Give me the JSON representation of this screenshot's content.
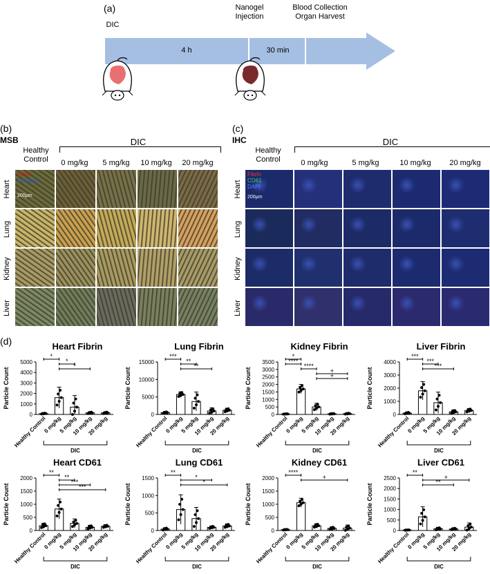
{
  "panel_a": {
    "label": "(a)",
    "events": [
      "DIC",
      "Nanogel\nInjection",
      "Blood Collection\nOrgan Harvest"
    ],
    "durations": [
      "4 h",
      "30 min"
    ]
  },
  "panel_b": {
    "label": "(b)",
    "method": "MSB",
    "group_label": "DIC",
    "control_label": "Healthy Control",
    "columns": [
      "0 mg/kg",
      "5 mg/kg",
      "10 mg/kg",
      "20 mg/kg"
    ],
    "rows": [
      "Heart",
      "Lung",
      "Kidney",
      "Liver"
    ],
    "legend": [
      "Fibrin",
      "Collagen"
    ],
    "scale_bar": "200μm"
  },
  "panel_c": {
    "label": "(c)",
    "method": "IHC",
    "group_label": "DIC",
    "control_label": "Healthy Control",
    "columns": [
      "0 mg/kg",
      "5 mg/kg",
      "10 mg/kg",
      "20 mg/kg"
    ],
    "rows": [
      "Heart",
      "Lung",
      "Kidney",
      "Liver"
    ],
    "legend": [
      "Fibrin",
      "CD61",
      "DAPI"
    ],
    "scale_bar": "200μm"
  },
  "panel_d": {
    "label": "(d)"
  },
  "colors": {
    "arrow": "#9fb9e0",
    "msb": "#c8b46a",
    "ihc": "#1d2a78",
    "fibrin": "#d01818",
    "collagen": "#2a56c6",
    "cd61": "#20b040"
  },
  "chart_data": [
    {
      "type": "bar",
      "title": "Heart Fibrin",
      "ylabel": "Particle Count",
      "categories": [
        "Healthy Control",
        "0 mg/kg",
        "5 mg/kg",
        "10 mg/kg",
        "20 mg/kg"
      ],
      "values": [
        80,
        1600,
        700,
        150,
        150
      ],
      "errors": [
        60,
        1000,
        1100,
        100,
        100
      ],
      "ylim": [
        0,
        5000
      ],
      "yticks": [
        0,
        1000,
        2000,
        3000,
        4000,
        5000
      ],
      "group_label": "DIC",
      "sig": [
        {
          "from": 0,
          "to": 1,
          "label": "*"
        },
        {
          "from": 1,
          "to": 2,
          "label": "*"
        },
        {
          "from": 1,
          "to": 3,
          "label": "*"
        }
      ]
    },
    {
      "type": "bar",
      "title": "Lung Fibrin",
      "ylabel": "Particle Count",
      "categories": [
        "Healthy Control",
        "0 mg/kg",
        "5 mg/kg",
        "10 mg/kg",
        "20 mg/kg"
      ],
      "values": [
        500,
        5700,
        3700,
        1000,
        1200
      ],
      "errors": [
        300,
        800,
        2700,
        900,
        600
      ],
      "ylim": [
        0,
        15000
      ],
      "yticks": [
        0,
        5000,
        10000,
        15000
      ],
      "group_label": "DIC",
      "sig": [
        {
          "from": 0,
          "to": 1,
          "label": "***"
        },
        {
          "from": 1,
          "to": 2,
          "label": "**"
        },
        {
          "from": 1,
          "to": 3,
          "label": "**"
        }
      ]
    },
    {
      "type": "bar",
      "title": "Kidney Fibrin",
      "ylabel": "Particle Count",
      "categories": [
        "Healthy Control",
        "0 mg/kg",
        "5 mg/kg",
        "10 mg/kg",
        "20 mg/kg"
      ],
      "values": [
        30,
        1700,
        500,
        40,
        50
      ],
      "errors": [
        20,
        300,
        250,
        30,
        40
      ],
      "ylim": [
        0,
        3500
      ],
      "yticks": [
        0,
        500,
        1000,
        1500,
        2000,
        2500,
        3000,
        3500
      ],
      "group_label": "DIC",
      "sig": [
        {
          "from": 0,
          "to": 1,
          "label": "*"
        },
        {
          "from": 0,
          "to": 1,
          "label": "****"
        },
        {
          "from": 1,
          "to": 2,
          "label": "****"
        },
        {
          "from": 2,
          "to": 4,
          "label": "+"
        },
        {
          "from": 2,
          "to": 4,
          "label": "+"
        }
      ]
    },
    {
      "type": "bar",
      "title": "Liver Fibrin",
      "ylabel": "Particle Count",
      "categories": [
        "Healthy Control",
        "0 mg/kg",
        "5 mg/kg",
        "10 mg/kg",
        "20 mg/kg"
      ],
      "values": [
        100,
        1800,
        900,
        200,
        300
      ],
      "errors": [
        80,
        700,
        800,
        150,
        150
      ],
      "ylim": [
        0,
        4000
      ],
      "yticks": [
        0,
        1000,
        2000,
        3000,
        4000
      ],
      "group_label": "DIC",
      "sig": [
        {
          "from": 0,
          "to": 1,
          "label": "***"
        },
        {
          "from": 1,
          "to": 2,
          "label": "***"
        },
        {
          "from": 1,
          "to": 3,
          "label": "***"
        }
      ]
    },
    {
      "type": "bar",
      "title": "Heart CD61",
      "ylabel": "Particle Count",
      "categories": [
        "Healthy Control",
        "0 mg/kg",
        "5 mg/kg",
        "10 mg/kg",
        "20 mg/kg"
      ],
      "values": [
        180,
        820,
        270,
        120,
        160
      ],
      "errors": [
        100,
        380,
        170,
        80,
        60
      ],
      "ylim": [
        0,
        2000
      ],
      "yticks": [
        0,
        500,
        1000,
        1500,
        2000
      ],
      "group_label": "DIC",
      "sig": [
        {
          "from": 0,
          "to": 1,
          "label": "**"
        },
        {
          "from": 1,
          "to": 2,
          "label": "**"
        },
        {
          "from": 1,
          "to": 3,
          "label": "***"
        },
        {
          "from": 1,
          "to": 4,
          "label": "***"
        }
      ]
    },
    {
      "type": "bar",
      "title": "Lung CD61",
      "ylabel": "Particle Count",
      "categories": [
        "Healthy Control",
        "0 mg/kg",
        "5 mg/kg",
        "10 mg/kg",
        "20 mg/kg"
      ],
      "values": [
        40,
        600,
        340,
        90,
        130
      ],
      "errors": [
        40,
        420,
        320,
        40,
        60
      ],
      "ylim": [
        0,
        1500
      ],
      "yticks": [
        0,
        500,
        1000,
        1500
      ],
      "group_label": "DIC",
      "sig": [
        {
          "from": 0,
          "to": 1,
          "label": "**"
        },
        {
          "from": 1,
          "to": 3,
          "label": "*"
        },
        {
          "from": 1,
          "to": 4,
          "label": "*"
        }
      ]
    },
    {
      "type": "bar",
      "title": "Kidney CD61",
      "ylabel": "Particle Count",
      "categories": [
        "Healthy Control",
        "0 mg/kg",
        "5 mg/kg",
        "10 mg/kg",
        "20 mg/kg"
      ],
      "values": [
        30,
        1060,
        180,
        80,
        90
      ],
      "errors": [
        20,
        170,
        80,
        60,
        120
      ],
      "ylim": [
        0,
        2000
      ],
      "yticks": [
        0,
        500,
        1000,
        1500,
        2000
      ],
      "group_label": "DIC",
      "sig": [
        {
          "from": 0,
          "to": 1,
          "label": "****"
        },
        {
          "from": 1,
          "to": 4,
          "label": "+"
        }
      ]
    },
    {
      "type": "bar",
      "title": "Liver CD61",
      "ylabel": "Particle Count",
      "categories": [
        "Healthy Control",
        "0 mg/kg",
        "5 mg/kg",
        "10 mg/kg",
        "20 mg/kg"
      ],
      "values": [
        20,
        650,
        80,
        70,
        160
      ],
      "errors": [
        10,
        480,
        70,
        50,
        200
      ],
      "ylim": [
        0,
        2500
      ],
      "yticks": [
        0,
        500,
        1000,
        1500,
        2000,
        2500
      ],
      "group_label": "DIC",
      "sig": [
        {
          "from": 0,
          "to": 1,
          "label": "**"
        },
        {
          "from": 1,
          "to": 4,
          "label": "+"
        },
        {
          "from": 1,
          "to": 3,
          "label": "**"
        }
      ]
    }
  ]
}
